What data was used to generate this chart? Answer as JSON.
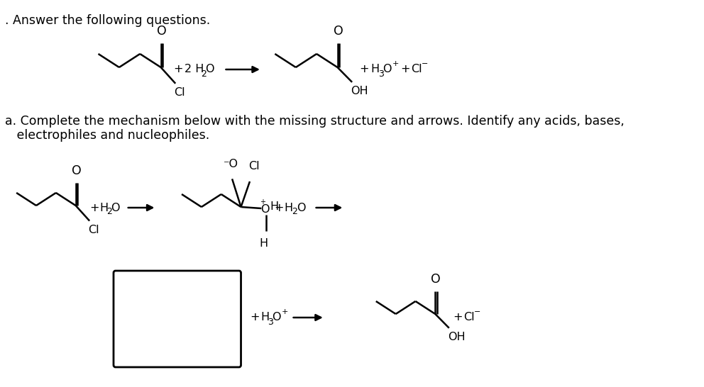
{
  "title_text": ". Answer the following questions.",
  "subtitle_line1": "a. Complete the mechanism below with the missing structure and arrows. Identify any acids, bases,",
  "subtitle_line2": "   electrophiles and nucleophiles.",
  "background_color": "#ffffff",
  "text_color": "#000000",
  "font_size_title": 12.5,
  "font_size_chem": 11.5,
  "font_size_sub": 9,
  "font_size_sup": 8
}
